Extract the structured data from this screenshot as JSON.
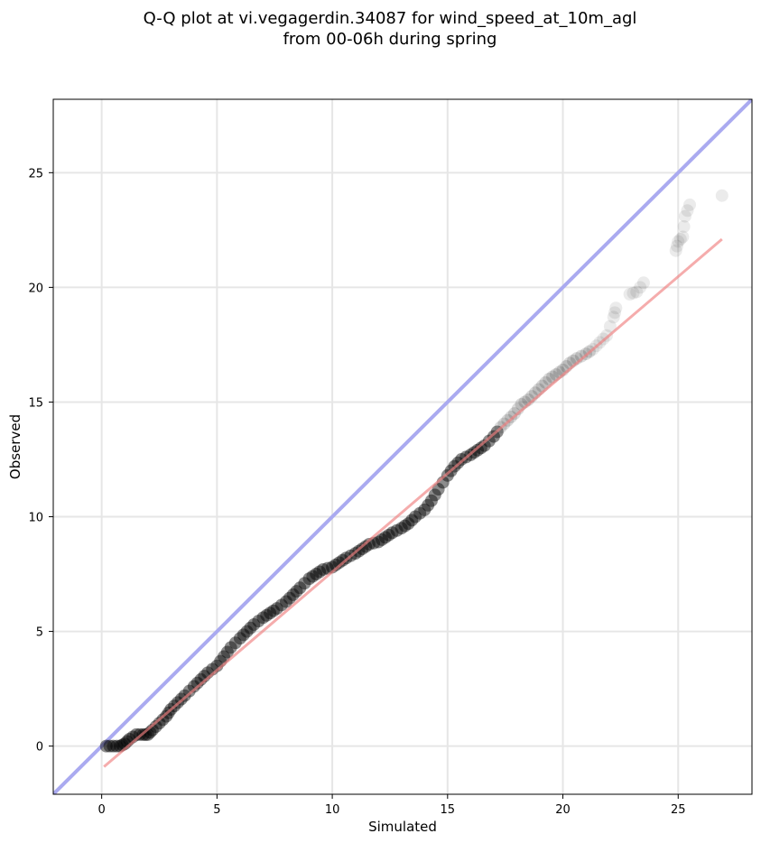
{
  "chart_data": {
    "type": "scatter",
    "title": [
      "Q-Q plot at vi.vegagerdin.34087 for wind_speed_at_10m_agl",
      "from 00-06h during spring"
    ],
    "xlabel": "Simulated",
    "ylabel": "Observed",
    "xlim": [
      -2.1,
      28.2
    ],
    "ylim": [
      -2.1,
      28.2
    ],
    "xticks": [
      0,
      5,
      10,
      15,
      20,
      25
    ],
    "yticks": [
      0,
      5,
      10,
      15,
      20,
      25
    ],
    "grid": true,
    "reference_line": {
      "x": [
        -2.1,
        28.2
      ],
      "y": [
        -2.1,
        28.2
      ],
      "color": "#aaaaf0"
    },
    "fit_line": {
      "x": [
        0.1,
        26.9
      ],
      "y": [
        -0.9,
        22.1
      ],
      "color": "#f4a3a3"
    },
    "series": [
      {
        "color": "#000000",
        "x": [
          0.2,
          0.5,
          0.8,
          1.0,
          1.2,
          1.5,
          1.8,
          2.0,
          2.2,
          2.5,
          2.8,
          3.0,
          3.3,
          3.6,
          4.0,
          4.3,
          4.6,
          5.0,
          5.3,
          5.6,
          6.0,
          6.3,
          6.6,
          7.0,
          7.3,
          7.6,
          8.0,
          8.3,
          8.6,
          9.0,
          9.3,
          9.6,
          10.0,
          10.3,
          10.6,
          11.0,
          11.3,
          11.6,
          12.0,
          12.3,
          12.6,
          13.0,
          13.3,
          13.6,
          14.0,
          14.3,
          14.6,
          15.0,
          15.3,
          15.6,
          16.0,
          16.3,
          16.6,
          17.0,
          17.3,
          17.6,
          17.9,
          18.2,
          18.5,
          18.8,
          19.1,
          19.4,
          19.7,
          20.0,
          20.3,
          20.6,
          21.0,
          21.3,
          21.6,
          21.9,
          22.2,
          22.3,
          22.9,
          23.2,
          23.5,
          24.9,
          25.0,
          25.2,
          25.3,
          25.5,
          26.9
        ],
        "y": [
          0.0,
          0.0,
          0.0,
          0.1,
          0.3,
          0.5,
          0.5,
          0.5,
          0.7,
          1.0,
          1.3,
          1.6,
          1.9,
          2.2,
          2.6,
          2.9,
          3.2,
          3.5,
          3.9,
          4.3,
          4.7,
          5.0,
          5.3,
          5.6,
          5.8,
          6.0,
          6.3,
          6.6,
          6.9,
          7.3,
          7.5,
          7.7,
          7.8,
          8.0,
          8.2,
          8.4,
          8.6,
          8.8,
          8.9,
          9.1,
          9.3,
          9.5,
          9.7,
          10.0,
          10.3,
          10.7,
          11.2,
          11.8,
          12.2,
          12.5,
          12.7,
          12.9,
          13.1,
          13.5,
          13.9,
          14.2,
          14.5,
          14.9,
          15.1,
          15.4,
          15.7,
          16.0,
          16.2,
          16.4,
          16.7,
          16.9,
          17.1,
          17.3,
          17.6,
          17.9,
          18.7,
          19.1,
          19.7,
          19.8,
          20.2,
          21.6,
          22.0,
          22.2,
          23.1,
          23.6,
          24.0
        ]
      }
    ]
  }
}
